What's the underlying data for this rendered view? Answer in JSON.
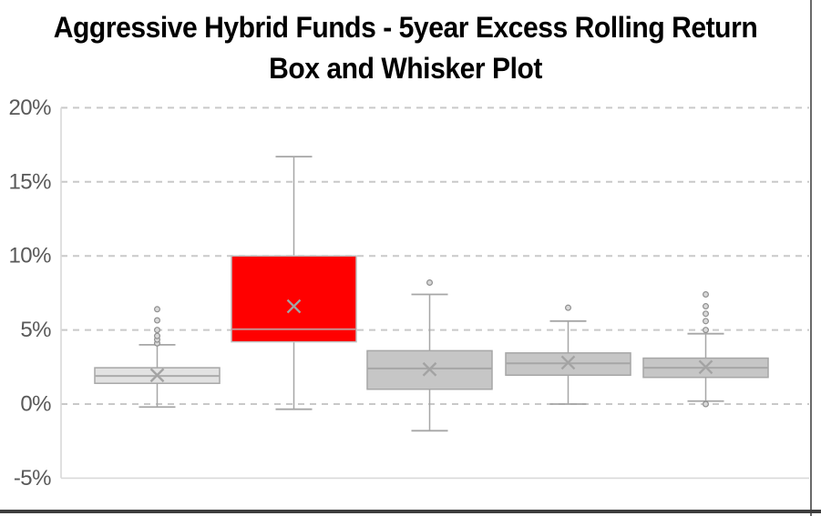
{
  "chart_data": {
    "type": "boxplot",
    "title": "Aggressive Hybrid Funds - 5year Excess Rolling Return",
    "subtitle": "Box and Whisker Plot",
    "legend": "none",
    "x_axis": {
      "visible_labels": "none",
      "category_count": 5
    },
    "y_axis": {
      "min": -5,
      "max": 20,
      "tick_step": 5,
      "unit": "%",
      "ticks": [
        {
          "value": 20,
          "label": "20%"
        },
        {
          "value": 15,
          "label": "15%"
        },
        {
          "value": 10,
          "label": "10%"
        },
        {
          "value": 5,
          "label": "5%"
        },
        {
          "value": 0,
          "label": "0%"
        },
        {
          "value": -5,
          "label": "-5%"
        }
      ],
      "gridlines": "dashed-horizontal",
      "gridline_color": "#c9c9c9",
      "axis_line_color": "#d9d9d9",
      "label_color": "#595959"
    },
    "marker_styles": {
      "mean_marker": "x-cross",
      "mean_color": "#a3a3a3",
      "outlier_marker": "dot",
      "outlier_fill": "#d9d9d9",
      "outlier_stroke": "#8f8f8f",
      "whisker_color": "#a6a6a6"
    },
    "highlight_color": "#ff0000",
    "series": [
      {
        "fill": "#e2e2e2",
        "border": "#a6a6a6",
        "median_color": "#ababab",
        "whisker_low": -0.2,
        "q1": 1.4,
        "median": 1.9,
        "mean": 1.95,
        "q3": 2.45,
        "whisker_high": 4.0,
        "outliers_high": [
          4.1,
          4.35,
          4.6,
          5.0,
          5.65,
          6.4
        ],
        "outliers_low": []
      },
      {
        "fill": "#ff0000",
        "border": "#bfbfbf",
        "median_color": "#c59191",
        "whisker_low": -0.35,
        "q1": 4.2,
        "median": 5.05,
        "mean": 6.6,
        "q3": 10.0,
        "whisker_high": 16.7,
        "outliers_high": [],
        "outliers_low": []
      },
      {
        "fill": "#c6c6c6",
        "border": "#a6a6a6",
        "median_color": "#a6a6a6",
        "whisker_low": -1.8,
        "q1": 1.0,
        "median": 2.4,
        "mean": 2.35,
        "q3": 3.6,
        "whisker_high": 7.4,
        "outliers_high": [
          8.2
        ],
        "outliers_low": []
      },
      {
        "fill": "#c6c6c6",
        "border": "#a6a6a6",
        "median_color": "#a6a6a6",
        "whisker_low": 0.0,
        "q1": 1.95,
        "median": 2.75,
        "mean": 2.8,
        "q3": 3.45,
        "whisker_high": 5.6,
        "outliers_high": [
          6.5
        ],
        "outliers_low": []
      },
      {
        "fill": "#c6c6c6",
        "border": "#a6a6a6",
        "median_color": "#a6a6a6",
        "whisker_low": 0.2,
        "q1": 1.8,
        "median": 2.45,
        "mean": 2.5,
        "q3": 3.1,
        "whisker_high": 4.75,
        "outliers_high": [
          5.0,
          5.6,
          6.1,
          6.6,
          7.4
        ],
        "outliers_low": [
          0.0
        ]
      }
    ]
  },
  "window": {
    "edge_right_color": "#6a6a6a",
    "edge_bottom_color": "#3d3d3d"
  }
}
